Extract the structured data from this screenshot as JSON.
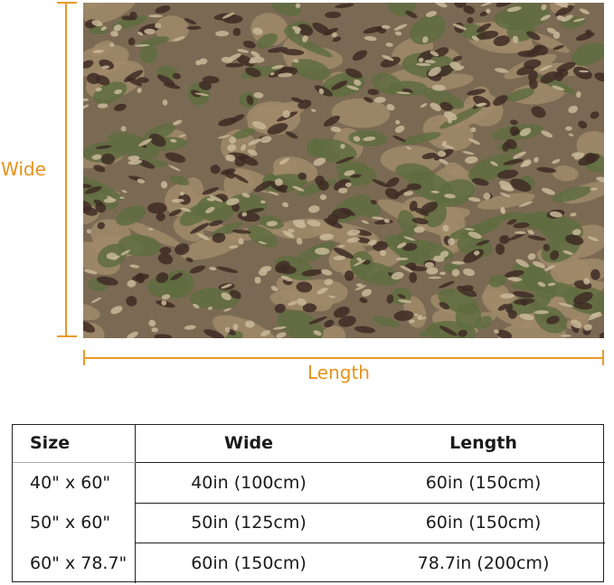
{
  "product_image": {
    "pattern": "multicam-camouflage",
    "colors": [
      "#7b6a53",
      "#5f6c40",
      "#3e2b24",
      "#c8b899",
      "#a08a6a"
    ]
  },
  "dimension_labels": {
    "wide": "Wide",
    "length": "Length",
    "accent_color": "#e8921c"
  },
  "size_table": {
    "headers": [
      "Size",
      "Wide",
      "Length"
    ],
    "rows": [
      {
        "size": "40\" x 60\"",
        "wide": "40in (100cm)",
        "length": "60in (150cm)"
      },
      {
        "size": "50\" x 60\"",
        "wide": "50in (125cm)",
        "length": "60in (150cm)"
      },
      {
        "size": "60\" x 78.7\"",
        "wide": "60in (150cm)",
        "length": "78.7in (200cm)"
      }
    ]
  }
}
